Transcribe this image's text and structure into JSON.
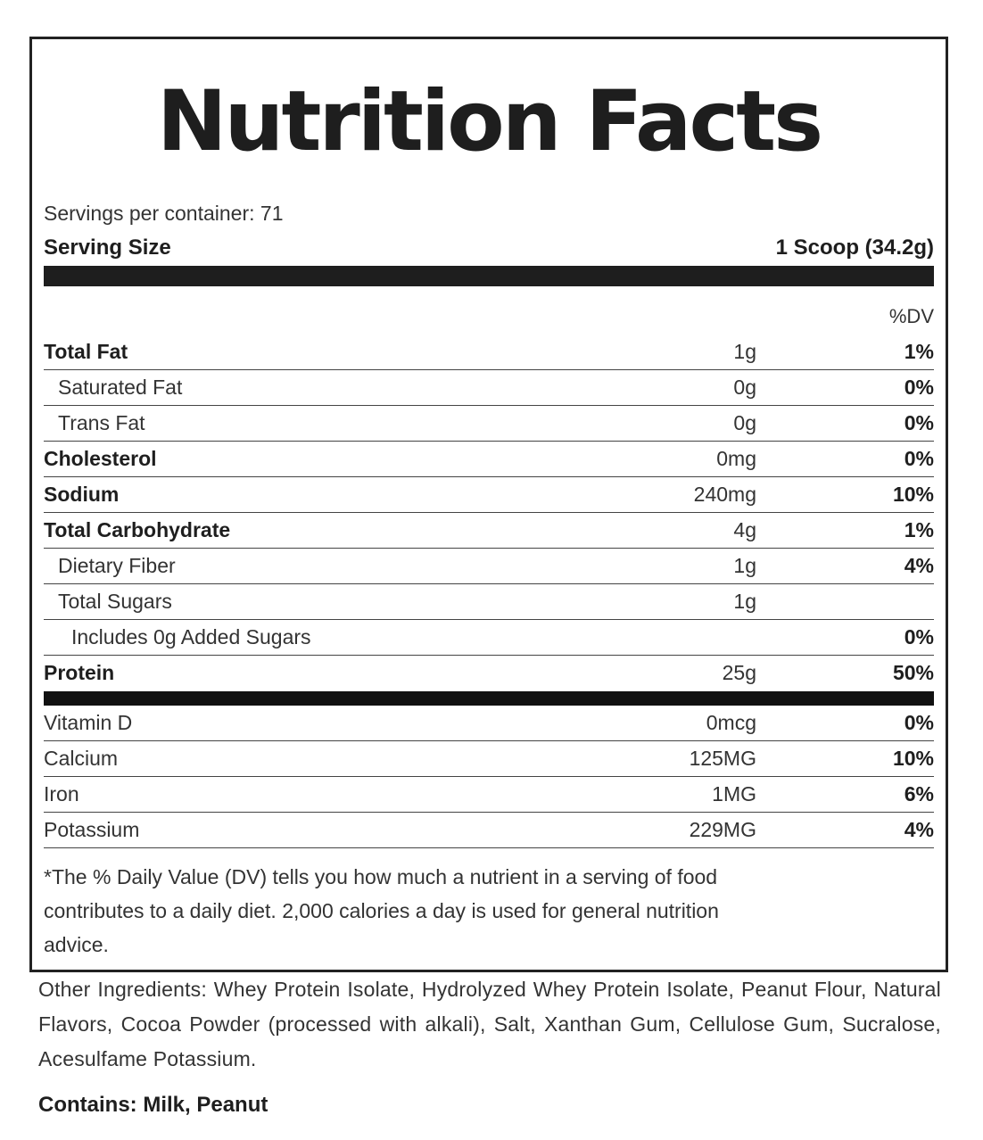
{
  "label": {
    "title": "Nutrition Facts",
    "servings_per_container": "Servings per container: 71",
    "serving_size_label": "Serving Size",
    "serving_size_value": "1 Scoop (34.2g)",
    "dv_header": "%DV",
    "nutrients": [
      {
        "name": "Total Fat",
        "amount": "1g",
        "dv": "1%"
      },
      {
        "name": "Saturated Fat",
        "amount": "0g",
        "dv": "0%"
      },
      {
        "name": "Trans Fat",
        "amount": "0g",
        "dv": "0%"
      },
      {
        "name": "Cholesterol",
        "amount": "0mg",
        "dv": "0%"
      },
      {
        "name": "Sodium",
        "amount": "240mg",
        "dv": "10%"
      },
      {
        "name": "Total Carbohydrate",
        "amount": "4g",
        "dv": "1%"
      },
      {
        "name": "Dietary Fiber",
        "amount": "1g",
        "dv": "4%"
      },
      {
        "name": "Total Sugars",
        "amount": "1g",
        "dv": ""
      },
      {
        "name": "Includes 0g Added Sugars",
        "amount": "",
        "dv": "0%"
      },
      {
        "name": "Protein",
        "amount": "25g",
        "dv": "50%"
      }
    ],
    "vitamins": [
      {
        "name": "Vitamin D",
        "amount": "0mcg",
        "dv": "0%"
      },
      {
        "name": "Calcium",
        "amount": "125MG",
        "dv": "10%"
      },
      {
        "name": "Iron",
        "amount": "1MG",
        "dv": "6%"
      },
      {
        "name": "Potassium",
        "amount": "229MG",
        "dv": "4%"
      }
    ],
    "footnote": "*The % Daily Value (DV) tells you how much a nutrient in a serving of food contributes to a daily diet. 2,000 calories a day is used for general nutrition advice."
  },
  "ingredients": "Other Ingredients: Whey Protein Isolate, Hydrolyzed Whey Protein Isolate, Peanut Flour, Natural Flavors, Cocoa Powder (processed with alkali), Salt, Xanthan Gum, Cellulose Gum, Sucralose, Acesulfame Potassium.",
  "contains": "Contains: Milk, Peanut"
}
